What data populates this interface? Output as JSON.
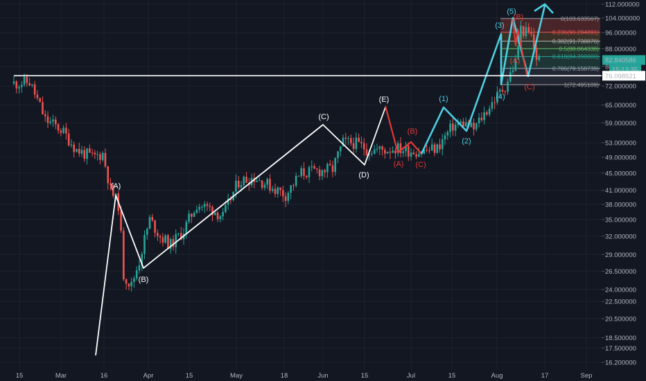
{
  "chart_data": {
    "type": "candlestick",
    "title": "",
    "y_axis_ticks": [
      "112.000000",
      "104.000000",
      "96.000000",
      "88.000000",
      "80.000000",
      "72.000000",
      "65.000000",
      "59.000000",
      "53.000000",
      "49.000000",
      "45.000000",
      "41.000000",
      "38.000000",
      "35.000000",
      "32.000000",
      "29.000000",
      "26.500000",
      "24.000000",
      "22.500000",
      "20.500000",
      "18.500000",
      "17.500000",
      "16.200000"
    ],
    "x_axis_ticks": [
      "15",
      "Mar",
      "16",
      "Apr",
      "15",
      "May",
      "18",
      "Jun",
      "15",
      "Jul",
      "15",
      "Aug",
      "17",
      "Sep"
    ],
    "price_labels": {
      "last": "82.840586",
      "countdown": "15:13:35",
      "level": "76.098521"
    },
    "horizontal_line_value": 76.098521,
    "price_path": [
      {
        "d": 0,
        "p": 73
      },
      {
        "d": 6,
        "p": 73.5
      },
      {
        "d": 12,
        "p": 60
      },
      {
        "d": 18,
        "p": 57
      },
      {
        "d": 24,
        "p": 51
      },
      {
        "d": 30,
        "p": 49
      },
      {
        "d": 34,
        "p": 50
      },
      {
        "d": 37,
        "p": 41
      },
      {
        "d": 40,
        "p": 38
      },
      {
        "d": 42,
        "p": 26
      },
      {
        "d": 45,
        "p": 24.5
      },
      {
        "d": 48,
        "p": 28
      },
      {
        "d": 52,
        "p": 35
      },
      {
        "d": 56,
        "p": 32
      },
      {
        "d": 60,
        "p": 30.5
      },
      {
        "d": 65,
        "p": 33
      },
      {
        "d": 70,
        "p": 38
      },
      {
        "d": 76,
        "p": 37
      },
      {
        "d": 80,
        "p": 35.5
      },
      {
        "d": 86,
        "p": 43
      },
      {
        "d": 92,
        "p": 44
      },
      {
        "d": 98,
        "p": 42
      },
      {
        "d": 104,
        "p": 40
      },
      {
        "d": 110,
        "p": 45
      },
      {
        "d": 116,
        "p": 45.5
      },
      {
        "d": 122,
        "p": 46
      },
      {
        "d": 126,
        "p": 53
      },
      {
        "d": 130,
        "p": 53
      },
      {
        "d": 136,
        "p": 51
      },
      {
        "d": 142,
        "p": 51
      },
      {
        "d": 146,
        "p": 51.5
      },
      {
        "d": 150,
        "p": 51
      },
      {
        "d": 156,
        "p": 50.5
      },
      {
        "d": 162,
        "p": 51.5
      },
      {
        "d": 168,
        "p": 58
      },
      {
        "d": 172,
        "p": 59
      },
      {
        "d": 176,
        "p": 57
      },
      {
        "d": 180,
        "p": 62
      },
      {
        "d": 184,
        "p": 67
      },
      {
        "d": 188,
        "p": 72
      },
      {
        "d": 192,
        "p": 82
      },
      {
        "d": 194,
        "p": 98
      },
      {
        "d": 196,
        "p": 96
      },
      {
        "d": 198,
        "p": 94
      },
      {
        "d": 200,
        "p": 84
      },
      {
        "d": 201,
        "p": 82.84
      }
    ],
    "wave_labels": {
      "white": [
        "(A)",
        "(B)",
        "(C)",
        "(D)",
        "(E)"
      ],
      "red_primary": [
        "(A)",
        "(B)",
        "(C)"
      ],
      "cyan": [
        "(1)",
        "(2)",
        "(3)",
        "(4)",
        "(5)"
      ],
      "red_secondary": [
        "(A)",
        "(B)",
        "(C)"
      ]
    },
    "fib_levels": [
      {
        "ratio": "0",
        "label": "0(103.633567)",
        "value": 103.633567
      },
      {
        "ratio": "0.236",
        "label": "0.236(96.284891)",
        "value": 96.284891
      },
      {
        "ratio": "0.382",
        "label": "0.382(91.738876)",
        "value": 91.738876
      },
      {
        "ratio": "0.5",
        "label": "0.5(88.064338)",
        "value": 88.064338
      },
      {
        "ratio": "0.618",
        "label": "0.618(84.390000)",
        "value": 84.39
      },
      {
        "ratio": "0.786",
        "label": "0.786(79.158739)",
        "value": 79.158739
      },
      {
        "ratio": "1",
        "label": "1(72.495109)",
        "value": 72.495109
      }
    ],
    "colors": {
      "bull": "#26a69a",
      "bear": "#ef5350",
      "white_wave": "#ffffff",
      "red_wave": "#e53935",
      "cyan_wave": "#4dd0e1",
      "background": "#131722"
    },
    "grid": true,
    "y_scale": "log"
  }
}
